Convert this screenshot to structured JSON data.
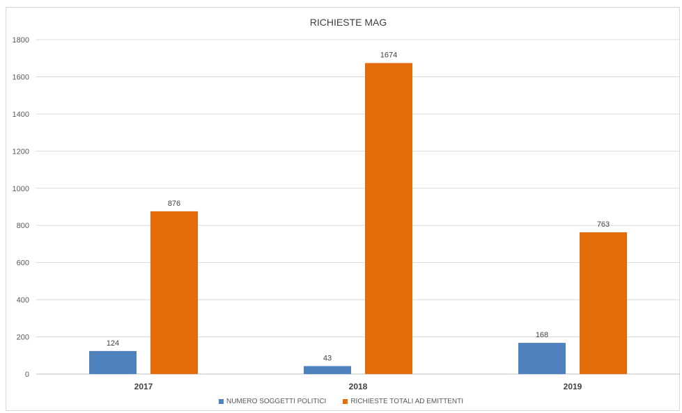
{
  "chart_data": {
    "type": "bar",
    "title": "RICHIESTE MAG",
    "categories": [
      "2017",
      "2018",
      "2019"
    ],
    "series": [
      {
        "name": "NUMERO SOGGETTI POLITICI",
        "values": [
          124,
          43,
          168
        ],
        "color": "#4f81bd"
      },
      {
        "name": "RICHIESTE TOTALI AD EMITTENTI",
        "values": [
          876,
          1674,
          763
        ],
        "color": "#e46c0a"
      }
    ],
    "ylim": [
      0,
      1800
    ],
    "yticks": [
      0,
      200,
      400,
      600,
      800,
      1000,
      1200,
      1400,
      1600,
      1800
    ],
    "grid": true,
    "legend_position": "bottom"
  }
}
